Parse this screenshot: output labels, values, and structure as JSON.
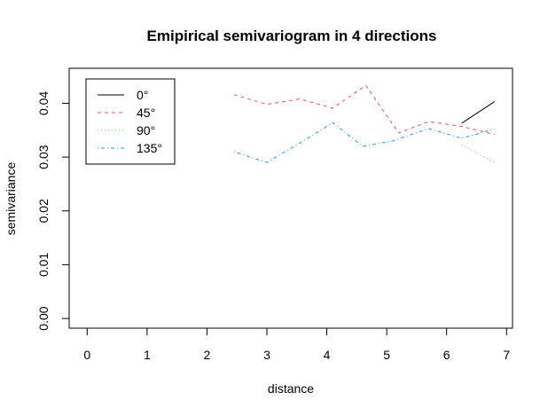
{
  "chart_data": {
    "type": "line",
    "title": "Emipirical semivariogram in 4 directions",
    "xlabel": "distance",
    "ylabel": "semivariance",
    "xlim": [
      -0.3,
      7.1
    ],
    "ylim": [
      -0.0018,
      0.0465
    ],
    "xticks": [
      "0",
      "1",
      "2",
      "3",
      "4",
      "5",
      "6",
      "7"
    ],
    "yticks": [
      "0.00",
      "0.01",
      "0.02",
      "0.03",
      "0.04"
    ],
    "grid": false,
    "legend_position": "top-left",
    "series": [
      {
        "name": "0°",
        "color": "#000000",
        "dash": "solid",
        "x": [
          6.25,
          6.8
        ],
        "y": [
          0.0363,
          0.0403
        ]
      },
      {
        "name": "45°",
        "color": "#DF536B",
        "dash": "dashed",
        "x": [
          2.45,
          3.0,
          3.55,
          4.1,
          4.65,
          5.2,
          5.7,
          6.25,
          6.8
        ],
        "y": [
          0.0416,
          0.0398,
          0.0408,
          0.0391,
          0.0433,
          0.0345,
          0.0366,
          0.0357,
          0.0342
        ]
      },
      {
        "name": "90°",
        "color": "#61D04F",
        "dash": "dotted",
        "x": [
          6.25,
          6.8
        ],
        "y": [
          0.0323,
          0.029
        ]
      },
      {
        "name": "135°",
        "color": "#2297E6",
        "dash": "dotdash",
        "x": [
          2.45,
          3.0,
          3.55,
          4.1,
          4.6,
          5.1,
          5.7,
          6.25,
          6.8
        ],
        "y": [
          0.031,
          0.029,
          0.0326,
          0.0364,
          0.032,
          0.033,
          0.0353,
          0.0335,
          0.0352
        ]
      }
    ]
  }
}
